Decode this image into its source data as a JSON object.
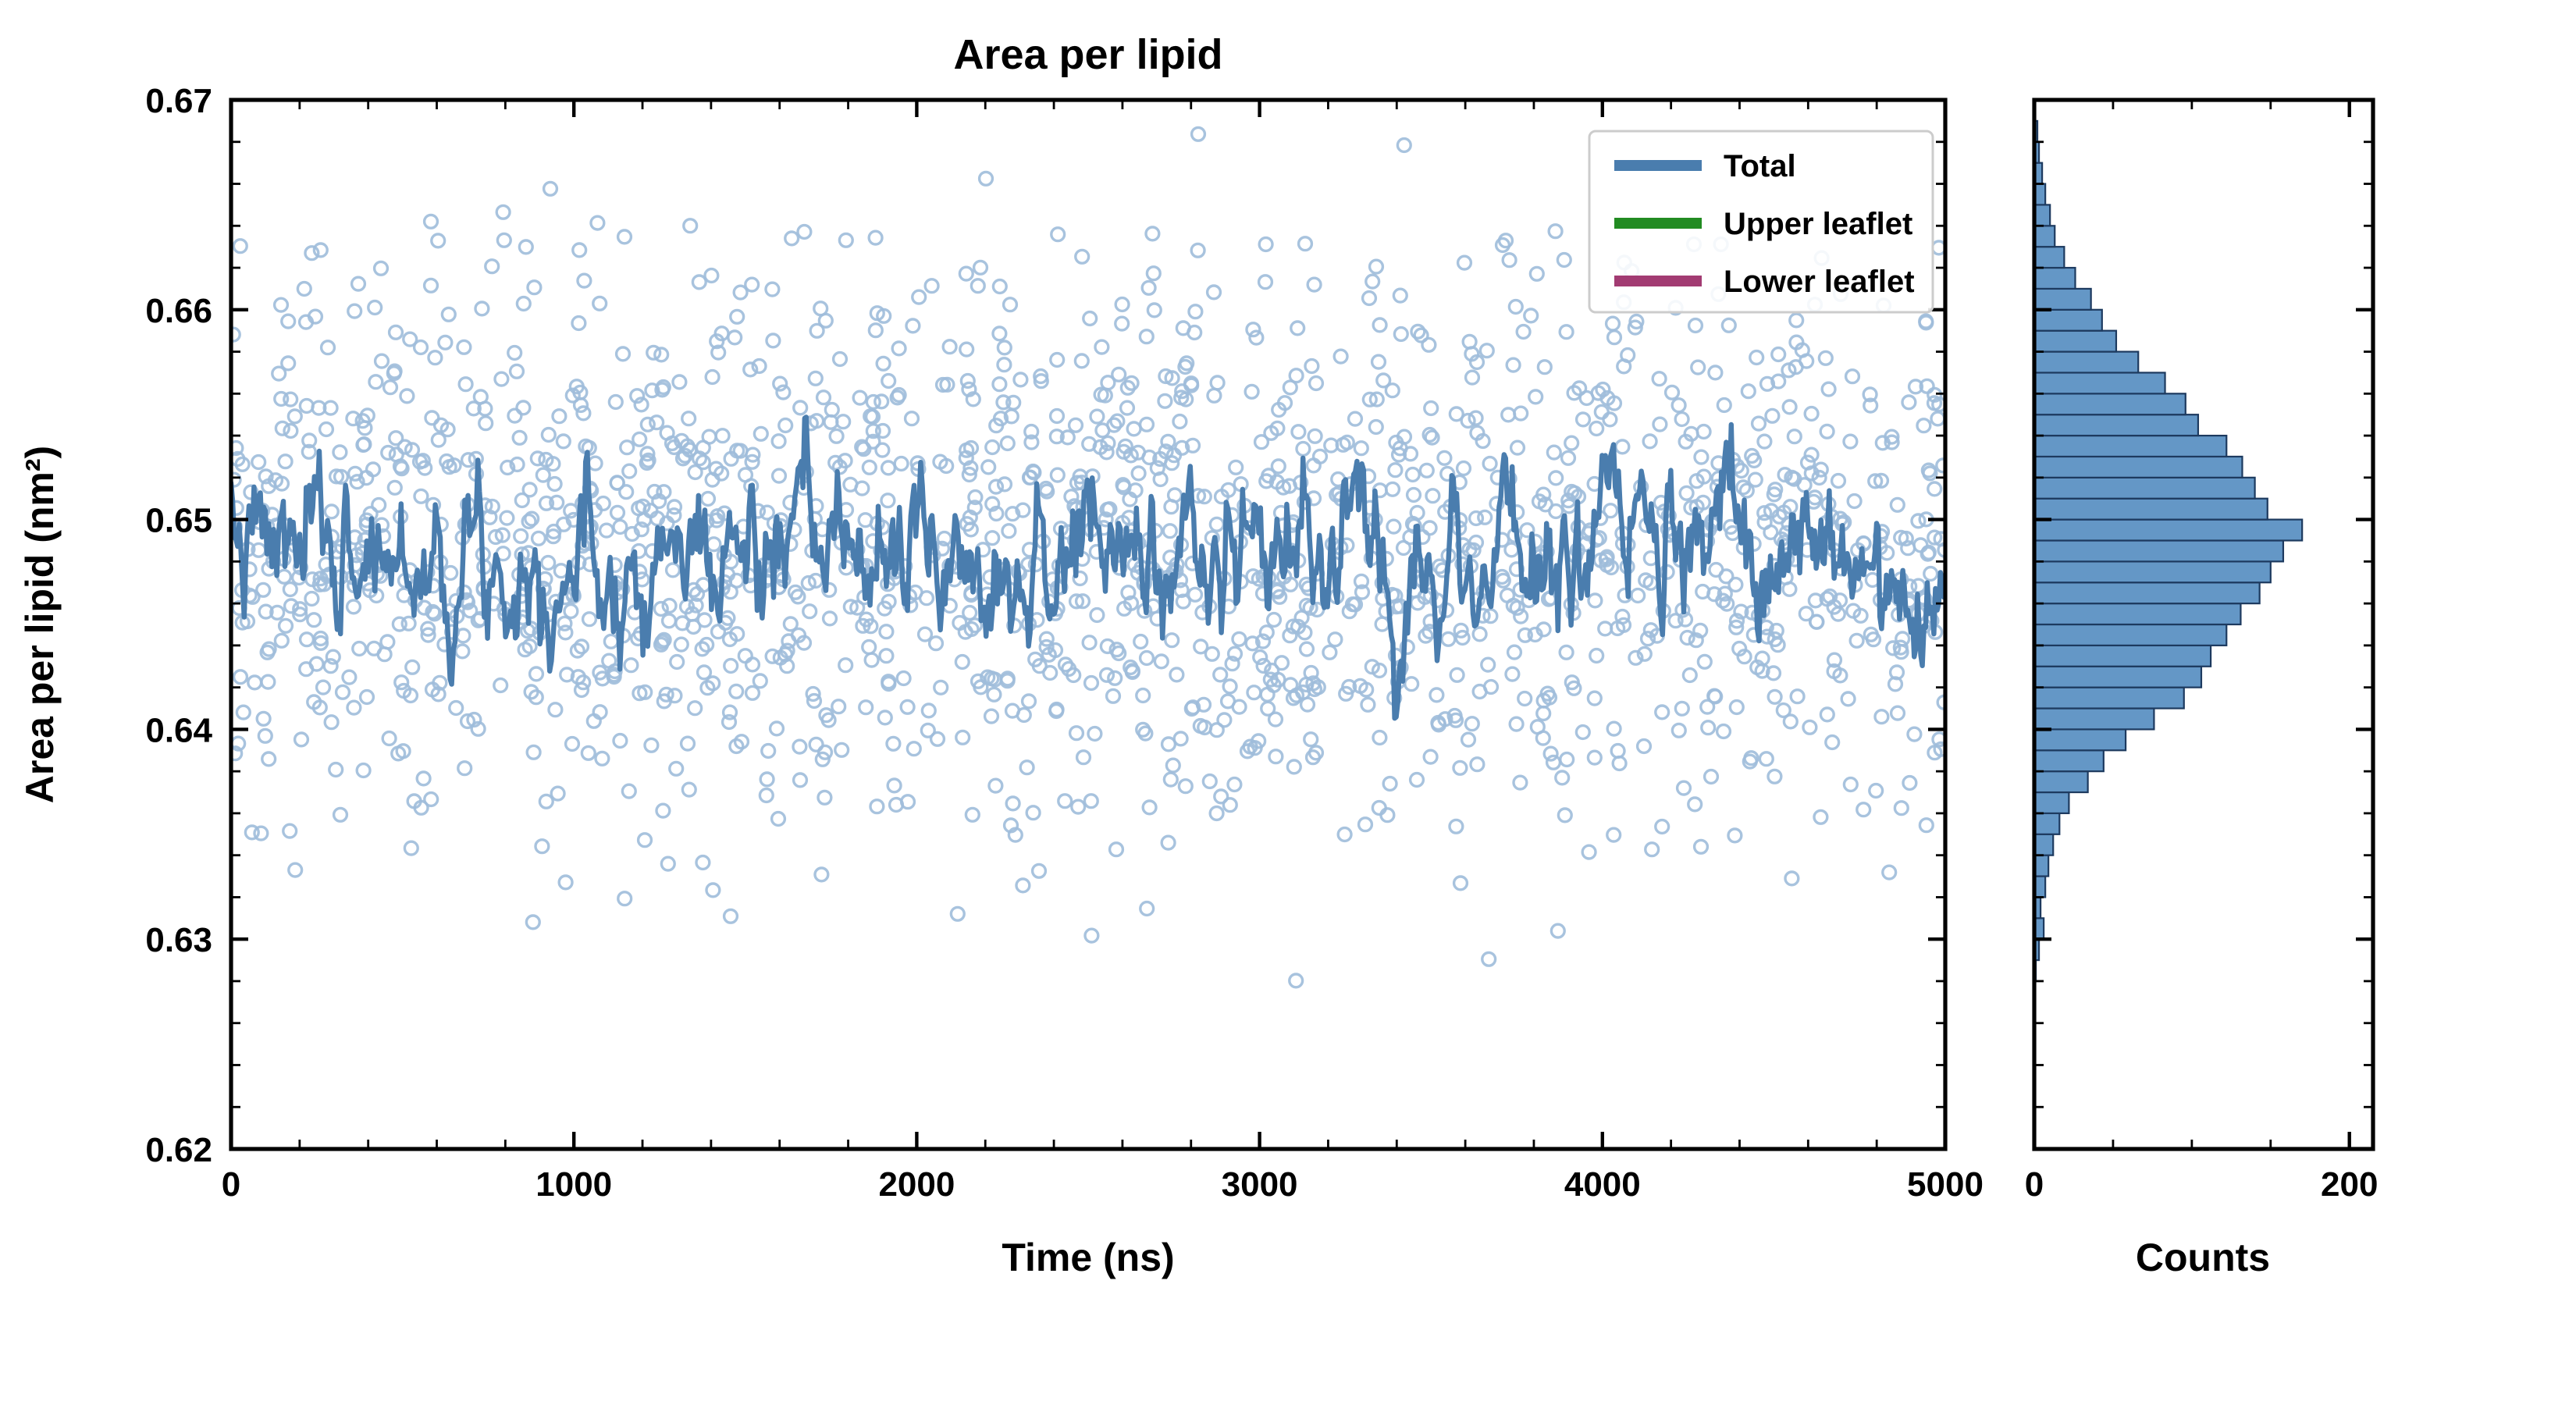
{
  "figure": {
    "background": "#ffffff",
    "spine_color": "#000000"
  },
  "chart_data": [
    {
      "type": "scatter",
      "title": "Area per lipid",
      "xlabel": "Time (ns)",
      "ylabel": "Area per lipid (nm²)",
      "xlim": [
        0,
        5000
      ],
      "ylim": [
        0.62,
        0.67
      ],
      "xticks": [
        0,
        1000,
        2000,
        3000,
        4000,
        5000
      ],
      "yticks": [
        0.62,
        0.63,
        0.64,
        0.65,
        0.66,
        0.67
      ],
      "x_minor_step": 200,
      "y_minor_step": 0.002,
      "legend": [
        {
          "label": "Total",
          "color": "#4a7dae"
        },
        {
          "label": "Upper leaflet",
          "color": "#228b22"
        },
        {
          "label": "Lower leaflet",
          "color": "#a23b72"
        }
      ],
      "scatter": {
        "n": 1750,
        "mean": 0.6486,
        "std": 0.0067,
        "seed": 42,
        "color": "#9fbcda"
      },
      "line": {
        "n": 1050,
        "mean": 0.6483,
        "ar": 0.78,
        "noise": 0.00125,
        "seed": 7,
        "color": "#4a7dae"
      }
    },
    {
      "type": "bar",
      "orientation": "horizontal",
      "xlabel": "Counts",
      "xlim": [
        0,
        215
      ],
      "xticks": [
        0,
        200
      ],
      "x_minor_step": 50,
      "bar_color": "#6497c6",
      "bar_edge_color": "#1d3a5f",
      "bin_start": 0.628,
      "bin_width": 0.001,
      "counts": [
        1,
        3,
        6,
        4,
        7,
        9,
        12,
        16,
        22,
        34,
        44,
        58,
        76,
        95,
        106,
        112,
        122,
        131,
        143,
        150,
        158,
        170,
        148,
        140,
        132,
        122,
        104,
        96,
        83,
        66,
        52,
        43,
        36,
        26,
        19,
        13,
        10,
        7,
        5,
        3,
        2
      ]
    }
  ]
}
